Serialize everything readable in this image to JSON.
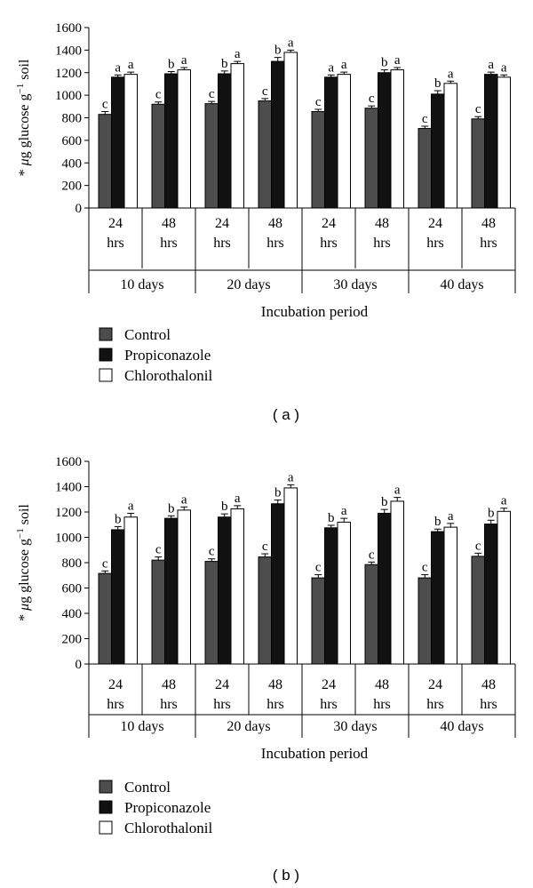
{
  "chart_data": [
    {
      "type": "bar",
      "panel_label": "( a )",
      "title": "",
      "xlabel": "Incubation period",
      "ylabel": "* μg glucose g⁻¹ soil",
      "ylabel_prefix": "* ",
      "ylabel_mu": "μ",
      "ylabel_main": "g glucose g",
      "ylabel_sup": "−1",
      "ylabel_tail": " soil",
      "ylim": [
        0,
        1600
      ],
      "yticks": [
        0,
        200,
        400,
        600,
        800,
        1000,
        1200,
        1400,
        1600
      ],
      "groups": [
        "10 days",
        "20 days",
        "30 days",
        "40 days"
      ],
      "subcategories": [
        [
          "24",
          "hrs"
        ],
        [
          "48",
          "hrs"
        ]
      ],
      "series": [
        {
          "name": "Control",
          "color": "#4d4d4d",
          "values": [
            830,
            920,
            925,
            950,
            855,
            885,
            705,
            790
          ],
          "errors": [
            25,
            20,
            20,
            20,
            20,
            20,
            20,
            20
          ],
          "letters": [
            "c",
            "c",
            "c",
            "c",
            "c",
            "c",
            "c",
            "c"
          ]
        },
        {
          "name": "Propiconazole",
          "color": "#111111",
          "values": [
            1160,
            1190,
            1190,
            1300,
            1160,
            1200,
            1010,
            1185
          ],
          "errors": [
            20,
            20,
            25,
            35,
            20,
            25,
            30,
            20
          ],
          "letters": [
            "a",
            "b",
            "b",
            "b",
            "a",
            "b",
            "b",
            "a"
          ]
        },
        {
          "name": "Chlorothalonil",
          "color": "#ffffff",
          "values": [
            1185,
            1225,
            1280,
            1380,
            1185,
            1225,
            1105,
            1160
          ],
          "errors": [
            20,
            20,
            20,
            20,
            20,
            20,
            20,
            20
          ],
          "letters": [
            "a",
            "a",
            "a",
            "a",
            "a",
            "a",
            "a",
            "a"
          ]
        }
      ],
      "legend_entries": [
        "Control",
        "Propiconazole",
        "Chlorothalonil"
      ]
    },
    {
      "type": "bar",
      "panel_label": "( b )",
      "title": "",
      "xlabel": "Incubation period",
      "ylabel": "* μg glucose g⁻¹ soil",
      "ylabel_prefix": "* ",
      "ylabel_mu": "μ",
      "ylabel_main": "g glucose g",
      "ylabel_sup": "−1",
      "ylabel_tail": " soil",
      "ylim": [
        0,
        1600
      ],
      "yticks": [
        0,
        200,
        400,
        600,
        800,
        1000,
        1200,
        1400,
        1600
      ],
      "groups": [
        "10 days",
        "20 days",
        "30 days",
        "40 days"
      ],
      "subcategories": [
        [
          "24",
          "hrs"
        ],
        [
          "48",
          "hrs"
        ]
      ],
      "series": [
        {
          "name": "Control",
          "color": "#4d4d4d",
          "values": [
            715,
            820,
            810,
            845,
            680,
            785,
            680,
            850
          ],
          "errors": [
            20,
            25,
            20,
            25,
            25,
            20,
            25,
            25
          ],
          "letters": [
            "c",
            "c",
            "c",
            "c",
            "c",
            "c",
            "c",
            "c"
          ]
        },
        {
          "name": "Propiconazole",
          "color": "#111111",
          "values": [
            1060,
            1150,
            1160,
            1265,
            1075,
            1190,
            1045,
            1105
          ],
          "errors": [
            25,
            20,
            25,
            30,
            20,
            30,
            20,
            30
          ],
          "letters": [
            "b",
            "b",
            "b",
            "b",
            "b",
            "b",
            "b",
            "b"
          ]
        },
        {
          "name": "Chlorothalonil",
          "color": "#ffffff",
          "values": [
            1160,
            1215,
            1225,
            1390,
            1120,
            1285,
            1080,
            1205
          ],
          "errors": [
            30,
            25,
            25,
            25,
            30,
            30,
            30,
            25
          ],
          "letters": [
            "a",
            "a",
            "a",
            "a",
            "a",
            "a",
            "a",
            "a"
          ]
        }
      ],
      "legend_entries": [
        "Control",
        "Propiconazole",
        "Chlorothalonil"
      ]
    }
  ]
}
